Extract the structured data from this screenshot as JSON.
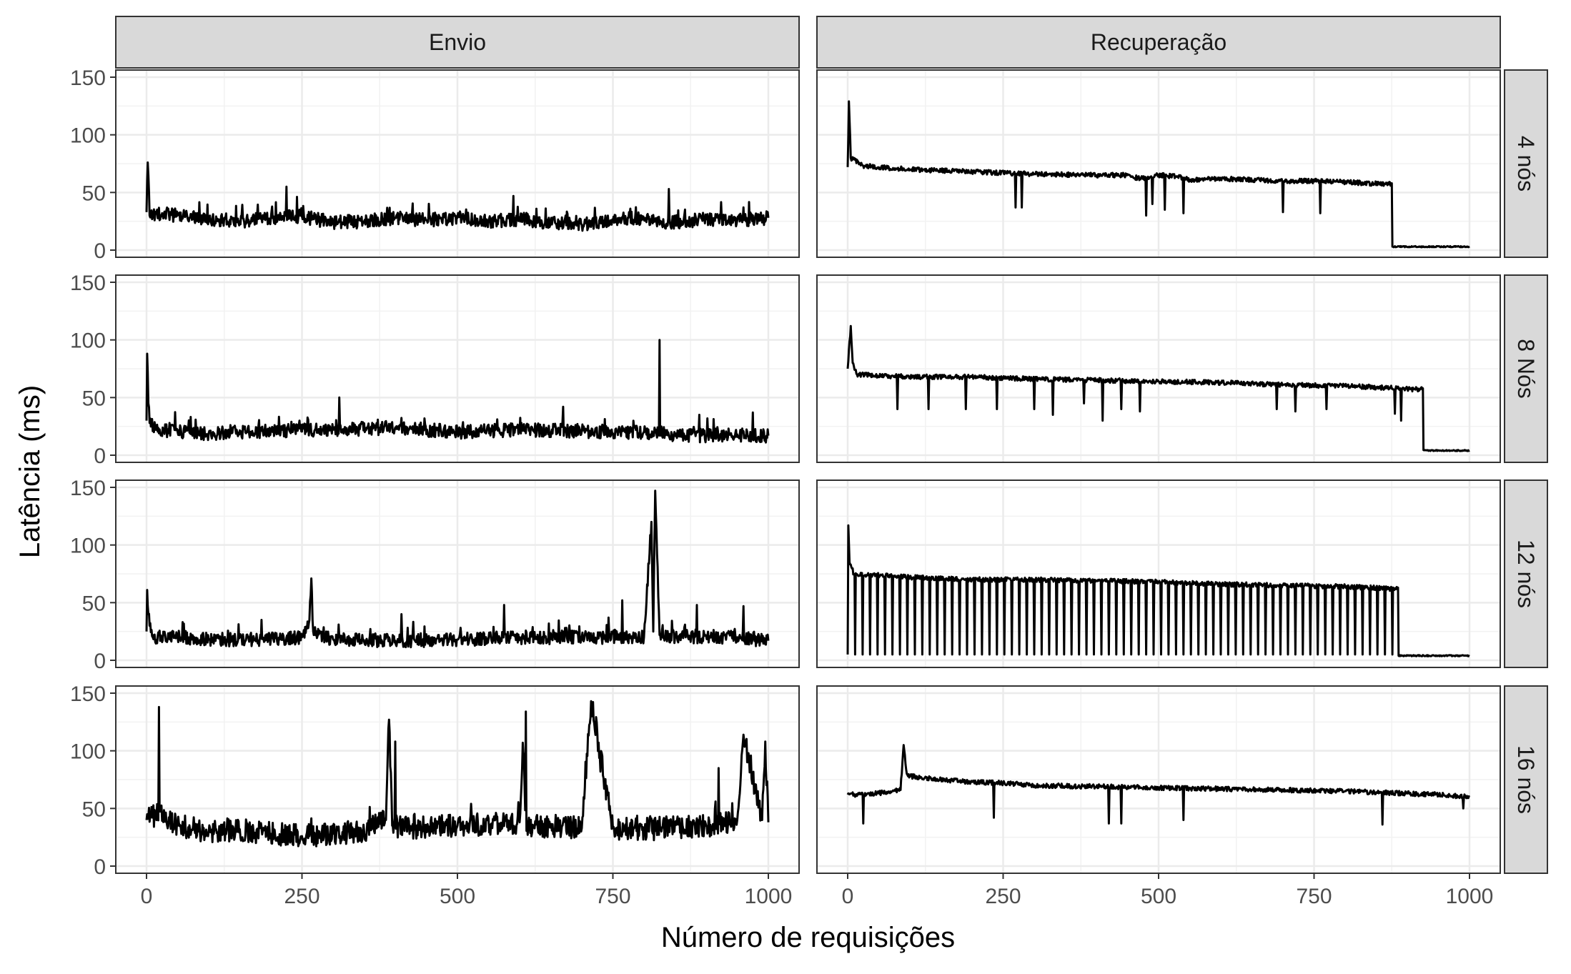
{
  "chart_data": {
    "type": "line",
    "x_axis": {
      "label": "Número de requisições",
      "range": [
        0,
        1000
      ],
      "ticks": [
        0,
        250,
        500,
        750,
        1000
      ]
    },
    "y_axis": {
      "label": "Latência (ms)",
      "range": [
        0,
        150
      ],
      "ticks": [
        0,
        50,
        100,
        150
      ]
    },
    "grid": true,
    "line_color": "#000000",
    "strip_fill": "#d9d9d9",
    "columns": [
      "Envio",
      "Recuperação"
    ],
    "rows": [
      "4 nós",
      "8 Nós",
      "12 nós",
      "16 nós"
    ],
    "panels": [
      {
        "column": "Envio",
        "row": "4 nós",
        "x": [
          0,
          2,
          5,
          25,
          50,
          100,
          150,
          200,
          225,
          250,
          300,
          350,
          400,
          450,
          500,
          550,
          600,
          650,
          700,
          750,
          775,
          800,
          850,
          900,
          950,
          1000
        ],
        "y": [
          33,
          76,
          30,
          32,
          30,
          27,
          25,
          28,
          30,
          29,
          24,
          25,
          28,
          26,
          28,
          25,
          27,
          24,
          22,
          25,
          28,
          26,
          24,
          27,
          26,
          28
        ],
        "spikes": [
          [
            225,
            55
          ],
          [
            590,
            47
          ],
          [
            840,
            53
          ],
          [
            960,
            37
          ]
        ]
      },
      {
        "column": "Recuperação",
        "row": "4 nós",
        "x": [
          0,
          2,
          5,
          25,
          100,
          200,
          300,
          400,
          450,
          470,
          500,
          530,
          550,
          600,
          700,
          750,
          800,
          870,
          875,
          876,
          900,
          1000
        ],
        "y": [
          72,
          129,
          80,
          73,
          70,
          68,
          66,
          65,
          65,
          62,
          65,
          64,
          61,
          62,
          60,
          60,
          59,
          57,
          58,
          3,
          3,
          3
        ],
        "spikes": [
          [
            270,
            37
          ],
          [
            280,
            37
          ],
          [
            480,
            30
          ],
          [
            490,
            40
          ],
          [
            510,
            35
          ],
          [
            540,
            32
          ],
          [
            700,
            33
          ],
          [
            760,
            32
          ]
        ]
      },
      {
        "column": "Envio",
        "row": "8 Nós",
        "x": [
          0,
          1,
          3,
          5,
          15,
          50,
          100,
          200,
          300,
          400,
          500,
          600,
          700,
          800,
          825,
          850,
          900,
          950,
          975,
          1000
        ],
        "y": [
          30,
          88,
          45,
          28,
          22,
          20,
          19,
          21,
          22,
          24,
          20,
          22,
          21,
          20,
          19,
          18,
          17,
          18,
          17,
          17
        ],
        "spikes": [
          [
            310,
            50
          ],
          [
            825,
            100
          ],
          [
            670,
            42
          ],
          [
            975,
            37
          ]
        ]
      },
      {
        "column": "Recuperação",
        "row": "8 Nós",
        "x": [
          0,
          5,
          8,
          15,
          100,
          200,
          300,
          400,
          500,
          600,
          700,
          800,
          850,
          920,
          925,
          926,
          1000
        ],
        "y": [
          75,
          112,
          80,
          70,
          68,
          68,
          66,
          65,
          64,
          63,
          61,
          60,
          59,
          57,
          58,
          4,
          4
        ],
        "spikes": [
          [
            80,
            40
          ],
          [
            130,
            40
          ],
          [
            190,
            40
          ],
          [
            240,
            40
          ],
          [
            300,
            40
          ],
          [
            330,
            35
          ],
          [
            380,
            45
          ],
          [
            410,
            30
          ],
          [
            440,
            40
          ],
          [
            470,
            38
          ],
          [
            690,
            40
          ],
          [
            720,
            38
          ],
          [
            770,
            40
          ],
          [
            880,
            36
          ],
          [
            890,
            30
          ]
        ]
      },
      {
        "column": "Envio",
        "row": "12 nós",
        "x": [
          0,
          1,
          3,
          5,
          10,
          50,
          100,
          200,
          250,
          262,
          265,
          268,
          300,
          400,
          500,
          600,
          700,
          800,
          812,
          815,
          818,
          825,
          850,
          900,
          950,
          1000
        ],
        "y": [
          25,
          61,
          40,
          30,
          20,
          20,
          18,
          18,
          20,
          35,
          71,
          25,
          18,
          17,
          18,
          20,
          20,
          20,
          120,
          25,
          147,
          22,
          20,
          21,
          20,
          17
        ],
        "spikes": [
          [
            185,
            35
          ],
          [
            410,
            40
          ],
          [
            575,
            48
          ],
          [
            765,
            52
          ],
          [
            885,
            48
          ],
          [
            960,
            47
          ]
        ]
      },
      {
        "column": "Recuperação",
        "row": "12 nós",
        "x": [
          0,
          1,
          3,
          10,
          100,
          200,
          300,
          400,
          500,
          600,
          700,
          800,
          880,
          885,
          886,
          1000
        ],
        "y": [
          75,
          117,
          85,
          75,
          72,
          70,
          70,
          69,
          68,
          66,
          65,
          64,
          62,
          63,
          4,
          4
        ],
        "periodic_dips": {
          "start": 0,
          "end": 880,
          "period": 12,
          "low": 5
        }
      },
      {
        "column": "Envio",
        "row": "16 nós",
        "x": [
          0,
          20,
          50,
          100,
          150,
          200,
          250,
          300,
          350,
          385,
          390,
          395,
          450,
          500,
          600,
          605,
          610,
          700,
          715,
          750,
          800,
          900,
          950,
          960,
          990,
          995,
          1000
        ],
        "y": [
          40,
          45,
          35,
          30,
          32,
          28,
          26,
          28,
          30,
          40,
          127,
          35,
          33,
          35,
          38,
          107,
          35,
          33,
          143,
          33,
          32,
          35,
          40,
          114,
          40,
          108,
          38
        ],
        "spikes": [
          [
            20,
            138
          ],
          [
            400,
            108
          ],
          [
            610,
            134
          ],
          [
            730,
            82
          ],
          [
            920,
            85
          ]
        ]
      },
      {
        "column": "Recuperação",
        "row": "16 nós",
        "x": [
          0,
          30,
          60,
          85,
          90,
          95,
          100,
          150,
          200,
          250,
          300,
          400,
          500,
          600,
          700,
          800,
          850,
          900,
          950,
          1000
        ],
        "y": [
          62,
          62,
          64,
          66,
          105,
          80,
          78,
          75,
          73,
          72,
          70,
          69,
          68,
          67,
          66,
          65,
          64,
          63,
          62,
          60
        ],
        "spikes": [
          [
            25,
            37
          ],
          [
            235,
            42
          ],
          [
            420,
            37
          ],
          [
            440,
            37
          ],
          [
            540,
            40
          ],
          [
            860,
            36
          ],
          [
            990,
            50
          ]
        ]
      }
    ]
  }
}
